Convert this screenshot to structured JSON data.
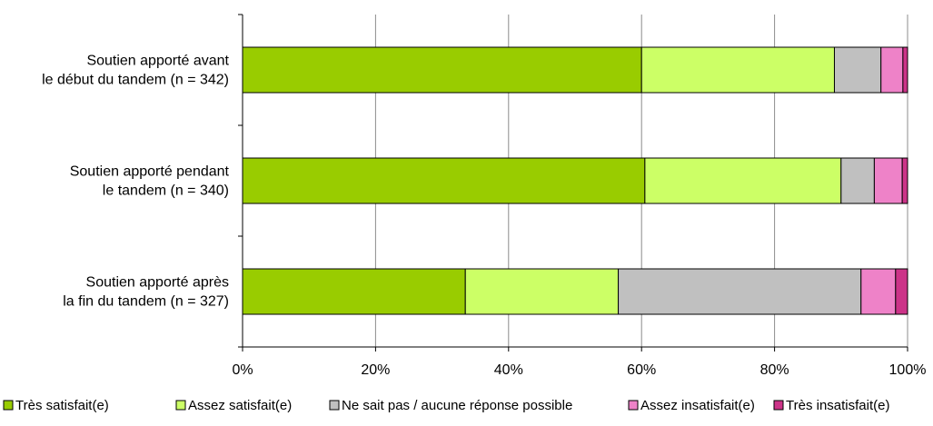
{
  "chart_data": {
    "type": "bar",
    "orientation": "horizontal",
    "stacked": "percent",
    "categories": [
      [
        "Soutien apporté avant",
        "le début du tandem (n = 342)"
      ],
      [
        "Soutien apporté pendant",
        "le tandem (n = 340)"
      ],
      [
        "Soutien apporté après",
        "la fin du tandem (n = 327)"
      ]
    ],
    "series": [
      {
        "name": "Très satisfait(e)",
        "color": "#99cc00",
        "values": [
          60,
          60.5,
          33.5
        ]
      },
      {
        "name": "Assez satisfait(e)",
        "color": "#ccff66",
        "values": [
          29,
          29.5,
          23
        ]
      },
      {
        "name": "Ne sait pas / aucune réponse possible",
        "color": "#c0c0c0",
        "values": [
          7,
          5,
          36.5
        ]
      },
      {
        "name": "Assez insatisfait(e)",
        "color": "#ee82c8",
        "values": [
          3.3,
          4.2,
          5.2
        ]
      },
      {
        "name": "Très insatisfait(e)",
        "color": "#cc3388",
        "values": [
          0.7,
          0.8,
          1.8
        ]
      }
    ],
    "xlim": [
      0,
      100
    ],
    "xticks": [
      "0%",
      "20%",
      "40%",
      "60%",
      "80%",
      "100%"
    ],
    "grid": "vertical",
    "legend": "bottom"
  }
}
